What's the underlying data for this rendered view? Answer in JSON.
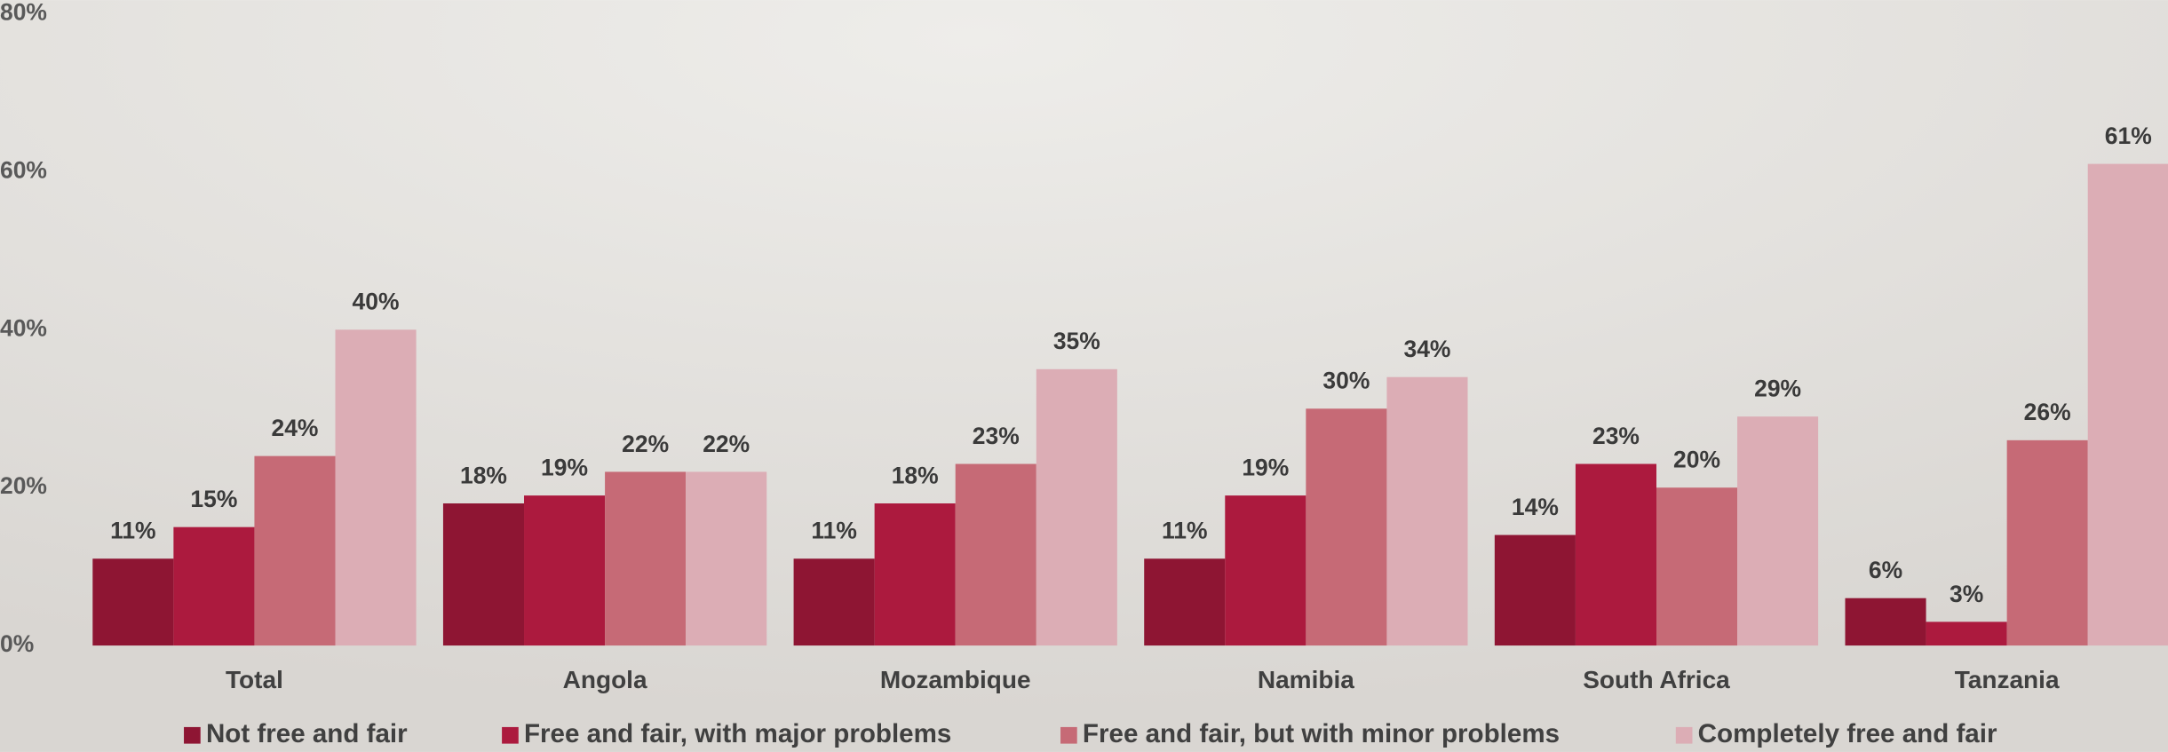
{
  "chart_data": {
    "type": "bar",
    "categories": [
      "Total",
      "Angola",
      "Mozambique",
      "Namibia",
      "South Africa",
      "Tanzania"
    ],
    "series": [
      {
        "name": "Not free and fair",
        "color": "#8e1533",
        "values": [
          11,
          18,
          11,
          11,
          14,
          6
        ],
        "value_labels": [
          "11%",
          "18%",
          "11%",
          "11%",
          "14%",
          "6%"
        ]
      },
      {
        "name": "Free and fair, with major problems",
        "color": "#ac1a3e",
        "values": [
          15,
          19,
          18,
          19,
          23,
          3
        ],
        "value_labels": [
          "15%",
          "19%",
          "18%",
          "19%",
          "23%",
          "3%"
        ]
      },
      {
        "name": "Free and fair, but with minor problems",
        "color": "#c66a76",
        "values": [
          24,
          22,
          23,
          30,
          20,
          26
        ],
        "value_labels": [
          "24%",
          "22%",
          "23%",
          "30%",
          "20%",
          "26%"
        ]
      },
      {
        "name": "Completely free and fair",
        "color": "#dcadb5",
        "values": [
          40,
          22,
          35,
          34,
          29,
          61
        ],
        "value_labels": [
          "40%",
          "22%",
          "35%",
          "34%",
          "29%",
          "61%"
        ]
      }
    ],
    "ylim": [
      0,
      80
    ],
    "yticks": [
      {
        "value": 0,
        "label": "0%"
      },
      {
        "value": 20,
        "label": "20%"
      },
      {
        "value": 40,
        "label": "40%"
      },
      {
        "value": 60,
        "label": "60%"
      },
      {
        "value": 80,
        "label": "80%"
      }
    ],
    "grid": false,
    "legend": "bottom"
  }
}
